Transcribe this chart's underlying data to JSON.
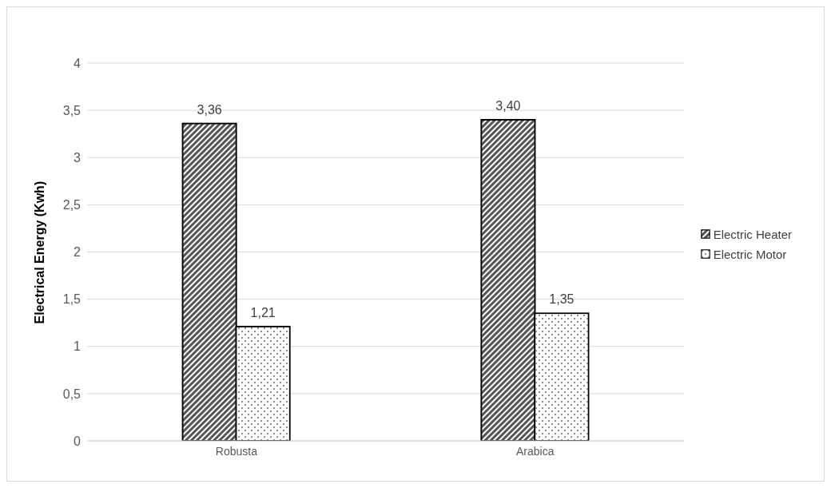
{
  "chart_data": {
    "type": "bar",
    "ylabel": "Electrical Energy (Kwh)",
    "categories": [
      "Robusta",
      "Arabica"
    ],
    "series": [
      {
        "name": "Electric Heater",
        "color": "#555555",
        "values": [
          3.36,
          3.4
        ],
        "value_labels": [
          "3,36",
          "3,40"
        ]
      },
      {
        "name": "Electric Motor",
        "color": "#ffffff",
        "values": [
          1.21,
          1.35
        ],
        "value_labels": [
          "1,21",
          "1,35"
        ]
      }
    ],
    "ylim": [
      0,
      4
    ],
    "yticks": [
      0,
      {
        "value": 0.5,
        "label": "0,5"
      },
      1,
      {
        "value": 1.5,
        "label": "1,5"
      },
      2,
      {
        "value": 2.5,
        "label": "2,5"
      },
      3,
      {
        "value": 3.5,
        "label": "3,5"
      },
      4
    ],
    "grid": "y",
    "legend": "right"
  }
}
